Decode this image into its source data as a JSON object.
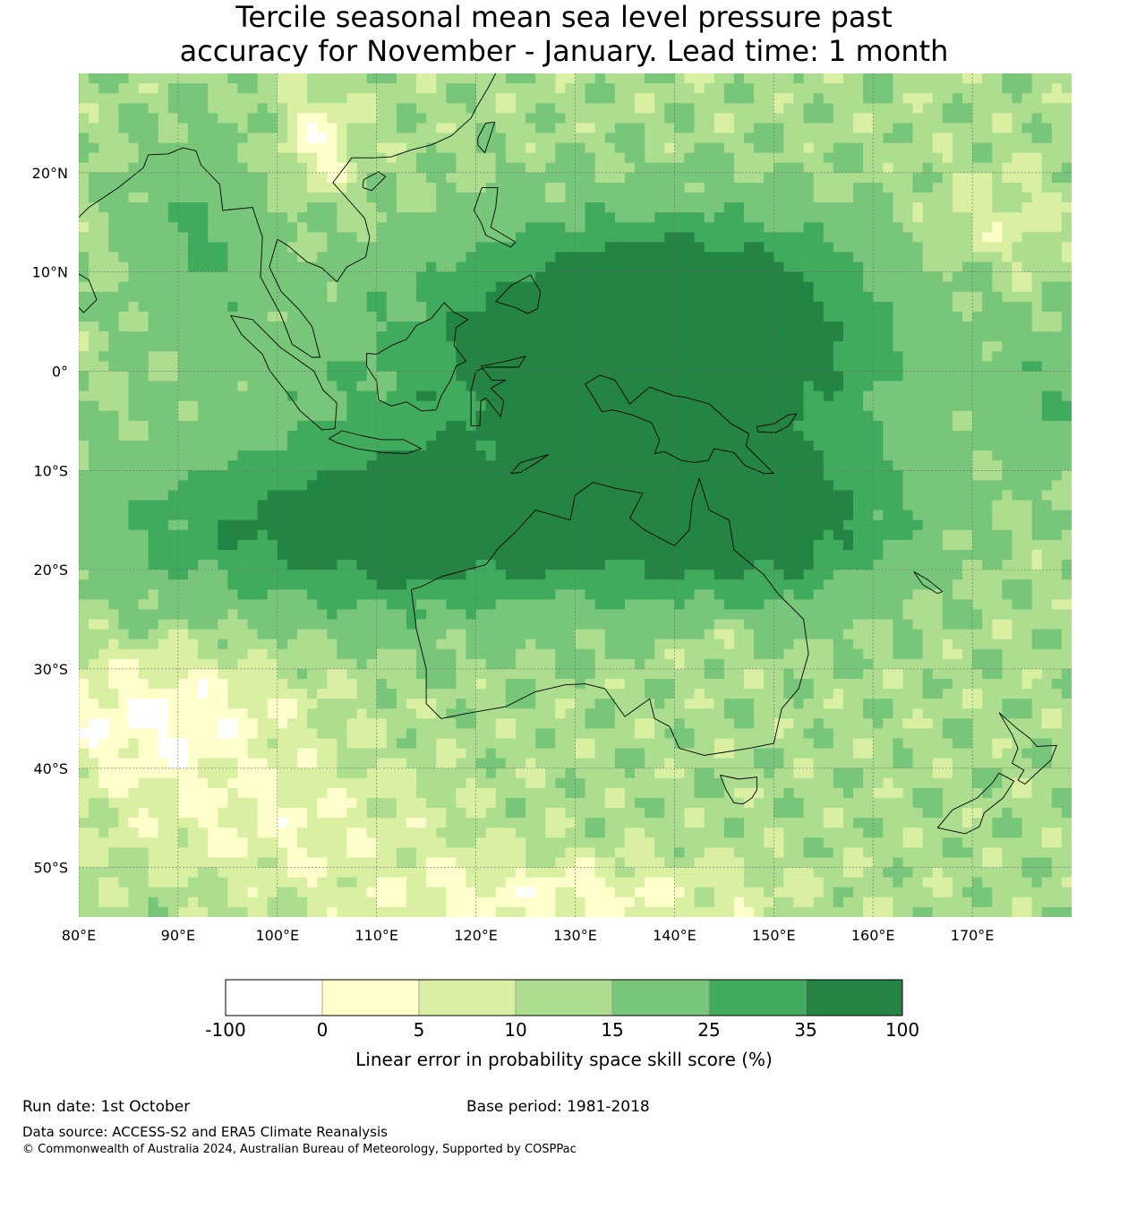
{
  "title": {
    "line1": "Tercile seasonal mean sea level pressure past",
    "line2": "accuracy for November - January. Lead time: 1 month"
  },
  "map": {
    "lon_range": [
      80,
      180
    ],
    "lat_range": [
      -55,
      30
    ],
    "lon_ticks": [
      80,
      90,
      100,
      110,
      120,
      130,
      140,
      150,
      160,
      170
    ],
    "lon_tick_labels": [
      "80°E",
      "90°E",
      "100°E",
      "110°E",
      "120°E",
      "130°E",
      "140°E",
      "150°E",
      "160°E",
      "170°E"
    ],
    "lat_ticks": [
      20,
      10,
      0,
      -10,
      -20,
      -30,
      -40,
      -50
    ],
    "lat_tick_labels": [
      "20°N",
      "10°N",
      "0°",
      "10°S",
      "20°S",
      "30°S",
      "40°S",
      "50°S"
    ],
    "gridlines": true
  },
  "colorbar": {
    "label": "Linear error in probability space skill score (%)",
    "boundaries": [
      "-100",
      "0",
      "5",
      "10",
      "15",
      "25",
      "35",
      "100"
    ],
    "colors": [
      "#ffffff",
      "#ffffcc",
      "#d9f0a3",
      "#addd8e",
      "#78c679",
      "#41ab5d",
      "#238443"
    ]
  },
  "footer": {
    "run_date": "Run date: 1st October",
    "base_period": "Base period: 1981-2018",
    "data_source": "Data source: ACCESS-S2 and ERA5 Climate Reanalysis",
    "copyright": "© Commonwealth of Australia 2024, Australian Bureau of Meteorology, Supported by COSPPac"
  }
}
